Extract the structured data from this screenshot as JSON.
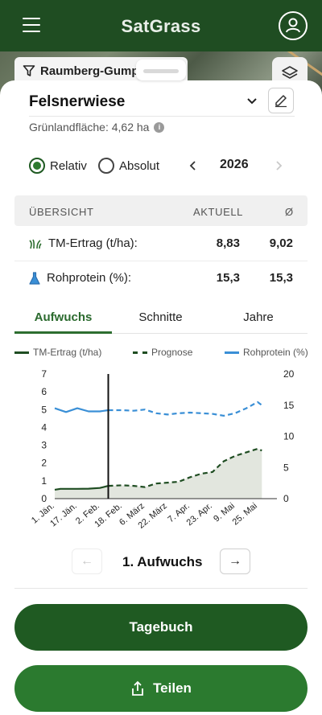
{
  "app": {
    "title": "SatGrass"
  },
  "map": {
    "location_chip": "Raumberg-Gump"
  },
  "field": {
    "name": "Felsnerwiese",
    "area_text": "Grünlandfläche: 4,62 ha"
  },
  "mode": {
    "options": [
      "Relativ",
      "Absolut"
    ],
    "selected": "Relativ"
  },
  "year": {
    "value": "2026"
  },
  "overview": {
    "headers": [
      "ÜBERSICHT",
      "AKTUELL",
      "Ø"
    ],
    "rows": [
      {
        "label": "TM-Ertrag (t/ha):",
        "current": "8,83",
        "average": "9,02",
        "icon": "grass-icon"
      },
      {
        "label": "Rohprotein (%):",
        "current": "15,3",
        "average": "15,3",
        "icon": "flask-icon"
      }
    ]
  },
  "tabs": [
    {
      "label": "Aufwuchs",
      "active": true
    },
    {
      "label": "Schnitte",
      "active": false
    },
    {
      "label": "Jahre",
      "active": false
    }
  ],
  "legend": [
    {
      "label": "TM-Ertrag (t/ha)",
      "color": "#1f4d22",
      "style": "solid"
    },
    {
      "label": "Prognose",
      "color": "#1f4d22",
      "style": "dashed"
    },
    {
      "label": "Rohprotein (%)",
      "color": "#3a8fd6",
      "style": "solid"
    }
  ],
  "chart_data": {
    "type": "line",
    "x_ticks": [
      "1. Jän.",
      "17. Jän.",
      "2. Feb.",
      "18. Feb.",
      "6. März",
      "22. März",
      "7. Apr.",
      "23. Apr.",
      "9. Mai",
      "25. Mai"
    ],
    "y_left": {
      "ticks": [
        0,
        1,
        2,
        3,
        4,
        5,
        6,
        7
      ],
      "range": [
        0,
        7
      ]
    },
    "y_right": {
      "ticks": [
        0,
        5,
        10,
        15,
        20
      ],
      "range": [
        0,
        20
      ]
    },
    "current_date_marker": "8. Feb.",
    "series": [
      {
        "name": "TM-Ertrag (t/ha)",
        "axis": "left",
        "style": "solid",
        "x": [
          "1. Jän.",
          "5. Jän.",
          "10. Jän.",
          "17. Jän.",
          "25. Jän.",
          "2. Feb.",
          "8. Feb."
        ],
        "values": [
          0.5,
          0.55,
          0.55,
          0.55,
          0.56,
          0.6,
          0.72
        ]
      },
      {
        "name": "Prognose",
        "axis": "left",
        "style": "dashed",
        "x": [
          "8. Feb.",
          "18. Feb.",
          "26. Feb.",
          "6. März",
          "14. März",
          "22. März",
          "30. März",
          "7. Apr.",
          "15. Apr.",
          "23. Apr.",
          "1. Mai",
          "9. Mai",
          "17. Mai",
          "25. Mai",
          "28. Mai"
        ],
        "values": [
          0.72,
          0.75,
          0.72,
          0.65,
          0.85,
          0.9,
          0.95,
          1.2,
          1.4,
          1.5,
          2.1,
          2.4,
          2.6,
          2.8,
          2.7
        ]
      },
      {
        "name": "Rohprotein (%)",
        "axis": "right",
        "style": "solid",
        "x": [
          "1. Jän.",
          "9. Jän.",
          "17. Jän.",
          "25. Jän.",
          "2. Feb.",
          "8. Feb."
        ],
        "values": [
          14.5,
          13.9,
          14.5,
          14.0,
          14.0,
          14.2
        ]
      },
      {
        "name": "Rohprotein Prognose",
        "axis": "right",
        "style": "dashed",
        "x": [
          "8. Feb.",
          "18. Feb.",
          "26. Feb.",
          "6. März",
          "14. März",
          "22. März",
          "30. März",
          "7. Apr.",
          "15. Apr.",
          "23. Apr.",
          "1. Mai",
          "9. Mai",
          "17. Mai",
          "25. Mai",
          "28. Mai"
        ],
        "values": [
          14.2,
          14.2,
          14.1,
          14.3,
          13.7,
          13.5,
          13.7,
          13.8,
          13.7,
          13.6,
          13.3,
          13.7,
          14.5,
          15.5,
          15.0
        ]
      }
    ]
  },
  "growth_nav": {
    "label": "1. Aufwuchs",
    "prev": "←",
    "next": "→"
  },
  "buttons": {
    "diary": "Tagebuch",
    "share": "Teilen"
  }
}
